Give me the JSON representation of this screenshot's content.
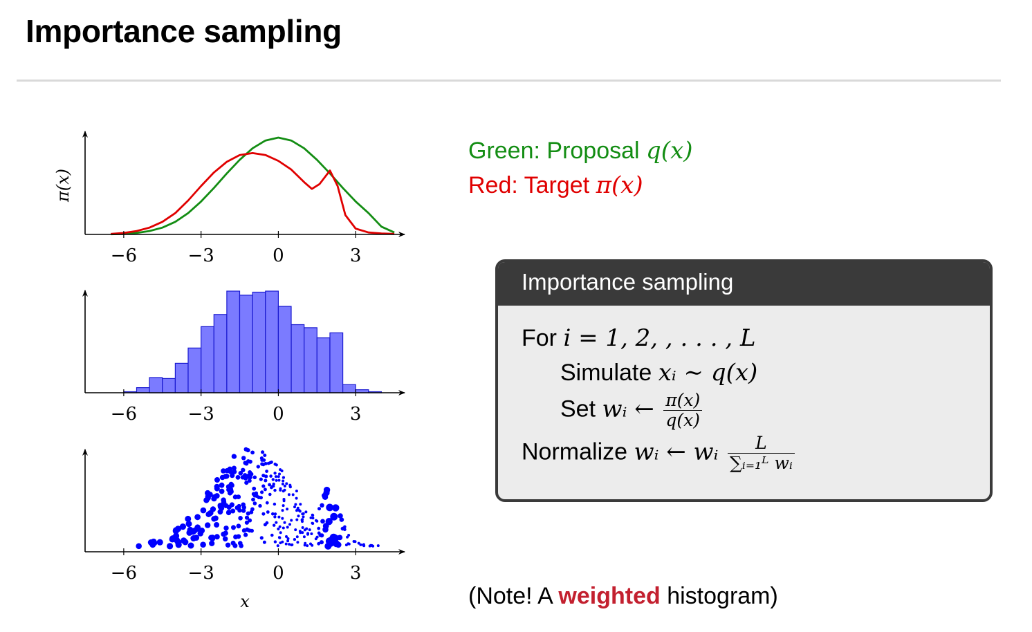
{
  "title": "Importance sampling",
  "legend": {
    "green_prefix": "Green: Proposal",
    "green_math": "q(x)",
    "red_prefix": "Red: Target",
    "red_math": "π(x)",
    "green_color": "#138d13",
    "red_color": "#e00000"
  },
  "algorithm": {
    "header": "Importance sampling",
    "line1_text": "For",
    "line1_math": "i = 1, 2, , . . . , L",
    "line2_text": "Simulate",
    "line2_math": "xᵢ ∼ q(x)",
    "line3_text": "Set",
    "line3_math": "wᵢ ←",
    "line3_frac_num": "π(x)",
    "line3_frac_den": "q(x)",
    "line4_text": "Normalize",
    "line4_math": "wᵢ ← wᵢ",
    "line4_frac_num": "L",
    "line4_frac_den": "∑ᵢ₌₁ᴸ wᵢ"
  },
  "note": {
    "before": "(Note! A",
    "highlight": "weighted",
    "after": "histogram)",
    "highlight_color": "#c3202f"
  },
  "chart_data": [
    {
      "type": "line",
      "ylabel": "π(x)",
      "xticks": [
        -6,
        -3,
        0,
        3
      ],
      "xlim": [
        -7.5,
        4.9
      ],
      "series": [
        {
          "color": "#138d13",
          "x": [
            -6.5,
            -6,
            -5.5,
            -5,
            -4.5,
            -4,
            -3.5,
            -3,
            -2.5,
            -2,
            -1.5,
            -1,
            -0.5,
            0,
            0.5,
            1,
            1.5,
            2,
            2.5,
            3,
            3.5,
            4,
            4.5
          ],
          "y": [
            0.002,
            0.006,
            0.015,
            0.035,
            0.07,
            0.13,
            0.22,
            0.34,
            0.48,
            0.63,
            0.77,
            0.89,
            0.97,
            1.0,
            0.97,
            0.89,
            0.77,
            0.63,
            0.48,
            0.34,
            0.22,
            0.08,
            0.02
          ]
        },
        {
          "color": "#e00000",
          "x": [
            -6.5,
            -6,
            -5.5,
            -5,
            -4.5,
            -4,
            -3.5,
            -3,
            -2.5,
            -2,
            -1.5,
            -1,
            -0.5,
            0,
            0.5,
            1,
            1.3,
            1.6,
            2,
            2.3,
            2.6,
            3,
            3.5,
            4,
            4.5
          ],
          "y": [
            0.005,
            0.015,
            0.035,
            0.07,
            0.13,
            0.22,
            0.35,
            0.5,
            0.64,
            0.75,
            0.82,
            0.84,
            0.82,
            0.76,
            0.67,
            0.54,
            0.47,
            0.52,
            0.66,
            0.5,
            0.2,
            0.06,
            0.02,
            0.01,
            0.005
          ]
        }
      ]
    },
    {
      "type": "bar",
      "xticks": [
        -6,
        -3,
        0,
        3
      ],
      "xlim": [
        -7.5,
        4.9
      ],
      "bin_width": 0.5,
      "bin_starts": [
        -6,
        -5.5,
        -5,
        -4.5,
        -4,
        -3.5,
        -3,
        -2.5,
        -2,
        -1.5,
        -1,
        -0.5,
        0,
        0.5,
        1,
        1.5,
        2,
        2.5,
        3,
        3.5
      ],
      "values": [
        1,
        5,
        15,
        14,
        29,
        44,
        65,
        77,
        100,
        96,
        99,
        100,
        85,
        67,
        64,
        54,
        59,
        8,
        3,
        1
      ],
      "color": "#7b7bff"
    },
    {
      "type": "scatter",
      "xlabel": "x",
      "xticks": [
        -6,
        -3,
        0,
        3
      ],
      "xlim": [
        -7.5,
        4.9
      ],
      "color": "#0000ff",
      "points": []
    }
  ]
}
